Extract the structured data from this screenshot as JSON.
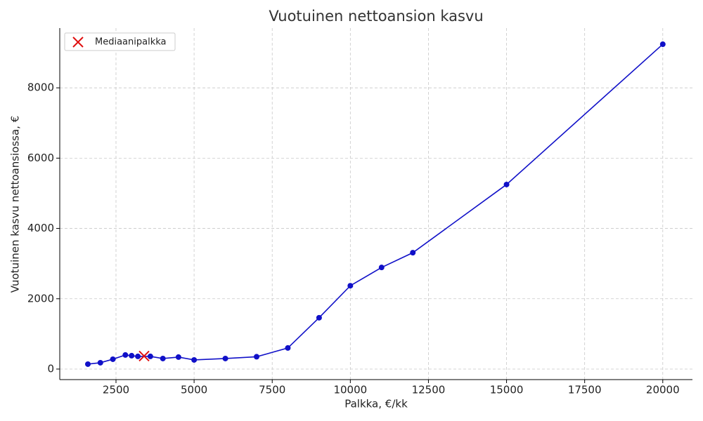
{
  "chart_data": {
    "type": "line",
    "title": "Vuotuinen nettoansion kasvu",
    "x_label": "Palkka, €/kk",
    "y_label": "Vuotuinen kasvu nettoansiossa, €",
    "xlim": [
      700,
      20950
    ],
    "ylim": [
      -300,
      9700
    ],
    "xticks": [
      2500,
      5000,
      7500,
      10000,
      12500,
      15000,
      17500,
      20000
    ],
    "yticks": [
      0,
      2000,
      4000,
      6000,
      8000
    ],
    "grid": true,
    "legend": "upper left",
    "series": [
      {
        "type": "line",
        "color": "#1010c8",
        "x": [
          1600,
          2000,
          2400,
          2800,
          3000,
          3200,
          3600,
          4000,
          4500,
          5000,
          6000,
          7000,
          8000,
          9000,
          10000,
          11000,
          12000,
          15000,
          20000
        ],
        "values": [
          140,
          180,
          280,
          400,
          380,
          360,
          360,
          300,
          340,
          260,
          300,
          350,
          600,
          1460,
          2370,
          2890,
          3310,
          5250,
          9240
        ]
      },
      {
        "type": "scatter",
        "name": "Mediaanipalkka",
        "color": "#e01010",
        "marker": "x",
        "x": [
          3400
        ],
        "values": [
          370
        ]
      }
    ]
  }
}
